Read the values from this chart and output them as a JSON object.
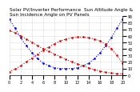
{
  "title": "Solar PV/Inverter Performance  Sun Altitude Angle & Sun Incidence Angle on PV Panels",
  "x": [
    0,
    1,
    2,
    3,
    4,
    5,
    6,
    7,
    8,
    9,
    10,
    11,
    12,
    13,
    14,
    15,
    16,
    17,
    18,
    19,
    20
  ],
  "blue_y": [
    85,
    72,
    57,
    45,
    34,
    25,
    18,
    14,
    11,
    10,
    10,
    10,
    11,
    14,
    18,
    25,
    34,
    45,
    57,
    72,
    85
  ],
  "red_y1": [
    5,
    9,
    14,
    20,
    26,
    32,
    38,
    43,
    48,
    52,
    55,
    57,
    58,
    58,
    57,
    55,
    52,
    47,
    40,
    30,
    18
  ],
  "red_y2": [
    68,
    65,
    60,
    55,
    50,
    45,
    40,
    36,
    32,
    28,
    24,
    20,
    17,
    14,
    11,
    8,
    6,
    4,
    3,
    2,
    2
  ],
  "blue_color": "#0000ee",
  "red_color": "#dd0000",
  "bg_color": "#ffffff",
  "grid_color": "#999999",
  "ylim": [
    0,
    90
  ],
  "xlim": [
    0,
    20
  ],
  "yticks": [
    0,
    10,
    20,
    30,
    40,
    50,
    60,
    70,
    80,
    90
  ],
  "ytick_labels": [
    "0",
    "10",
    "20",
    "30",
    "40",
    "50",
    "60",
    "70",
    "80",
    "90"
  ],
  "xticks": [
    0,
    2,
    4,
    6,
    8,
    10,
    12,
    14,
    16,
    18,
    20
  ],
  "title_fontsize": 4.2,
  "tick_fontsize": 3.5
}
